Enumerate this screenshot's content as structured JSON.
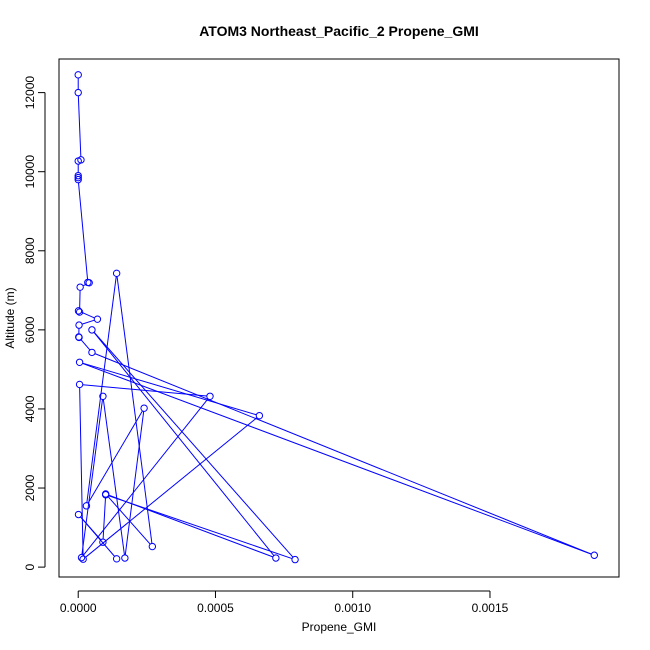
{
  "chart_data": {
    "type": "line",
    "title": "ATOM3 Northeast_Pacific_2 Propene_GMI",
    "xlabel": "Propene_GMI",
    "ylabel": "Altitude (m)",
    "xlim": [
      -7e-05,
      0.00197
    ],
    "ylim": [
      -250,
      12850
    ],
    "xticks": [
      0.0,
      0.0005,
      0.001,
      0.0015
    ],
    "xtick_labels": [
      "0.0000",
      "0.0005",
      "0.0010",
      "0.0015"
    ],
    "yticks": [
      0,
      2000,
      4000,
      6000,
      8000,
      10000,
      12000
    ],
    "ytick_labels": [
      "0",
      "2000",
      "4000",
      "6000",
      "8000",
      "10000",
      "12000"
    ],
    "grid": false,
    "markers": "open-circle",
    "color": "#0000ff",
    "series": [
      {
        "points": [
          {
            "x": 0.0,
            "y": 12450
          },
          {
            "x": 0.0,
            "y": 12000
          },
          {
            "x": 1e-05,
            "y": 10300
          },
          {
            "x": 0.0,
            "y": 10270
          },
          {
            "x": 0.0,
            "y": 9900
          },
          {
            "x": 0.0,
            "y": 9850
          },
          {
            "x": 0.0,
            "y": 9800
          },
          {
            "x": 3.5e-05,
            "y": 7200
          },
          {
            "x": 4e-05,
            "y": 7190
          },
          {
            "x": 7e-06,
            "y": 7080
          },
          {
            "x": 5e-06,
            "y": 6450
          },
          {
            "x": 1e-06,
            "y": 6480
          },
          {
            "x": 7e-05,
            "y": 6270
          },
          {
            "x": 3e-06,
            "y": 6120
          },
          {
            "x": 2e-06,
            "y": 5820
          },
          {
            "x": 3e-06,
            "y": 5810
          },
          {
            "x": 5e-05,
            "y": 5430
          },
          {
            "x": 0.00188,
            "y": 300
          },
          {
            "x": 5e-06,
            "y": 5180
          },
          {
            "x": 0.00066,
            "y": 3830
          },
          {
            "x": 1.8e-05,
            "y": 200
          },
          {
            "x": 5e-06,
            "y": 4620
          },
          {
            "x": 0.00048,
            "y": 4320
          },
          {
            "x": 1.2e-05,
            "y": 240
          },
          {
            "x": 9e-05,
            "y": 4320
          },
          {
            "x": 0.00017,
            "y": 230
          },
          {
            "x": 0.00024,
            "y": 4020
          },
          {
            "x": 3e-05,
            "y": 1550
          },
          {
            "x": 0.00014,
            "y": 7430
          },
          {
            "x": 0.00027,
            "y": 520
          },
          {
            "x": 0.0001,
            "y": 1850
          },
          {
            "x": 0.00072,
            "y": 230
          },
          {
            "x": 5e-05,
            "y": 6000
          },
          {
            "x": 0.00079,
            "y": 190
          },
          {
            "x": 0.0001,
            "y": 1830
          },
          {
            "x": 9e-05,
            "y": 630
          },
          {
            "x": 1e-06,
            "y": 1330
          },
          {
            "x": 0.00014,
            "y": 210
          }
        ]
      }
    ]
  }
}
